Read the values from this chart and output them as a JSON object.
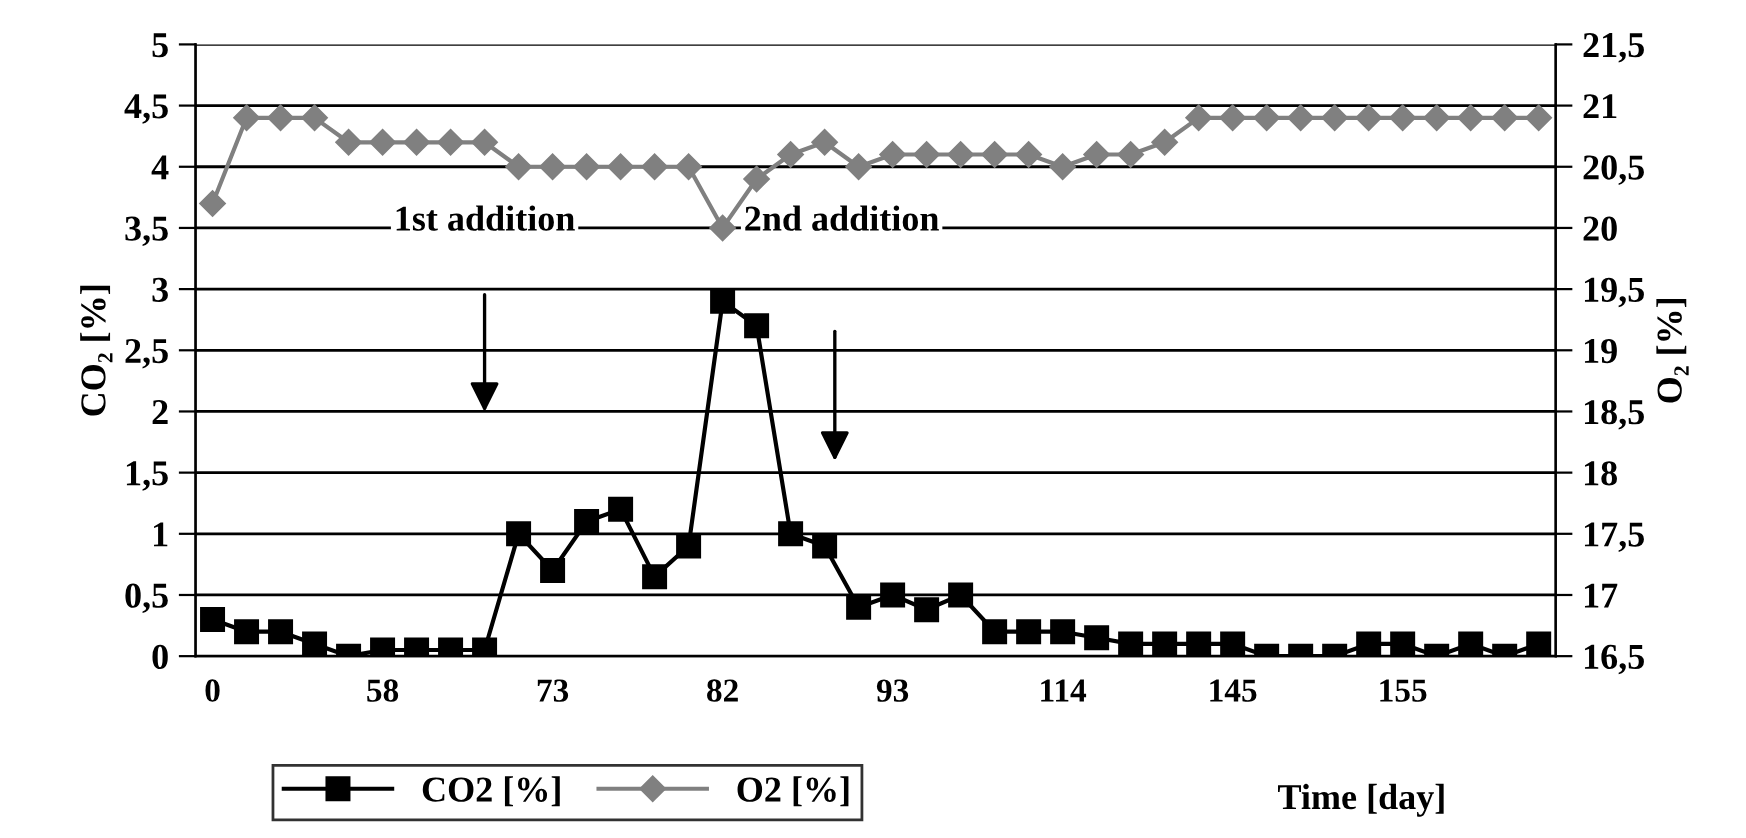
{
  "chart_data": {
    "type": "line",
    "xlabel": "Time [day]",
    "ylabel": "CO₂ [%]",
    "y2label": "O₂ [%]",
    "categories": [
      "0",
      null,
      null,
      null,
      null,
      "58",
      null,
      null,
      null,
      null,
      "73",
      null,
      null,
      null,
      null,
      "82",
      null,
      null,
      null,
      null,
      "93",
      null,
      null,
      null,
      null,
      "114",
      null,
      null,
      null,
      null,
      "145",
      null,
      null,
      null,
      null,
      "155",
      null,
      null,
      null,
      null
    ],
    "series": [
      {
        "name": "CO2 [%]",
        "color": "#000000",
        "marker": "square",
        "values": [
          0.3,
          0.2,
          0.2,
          0.1,
          0,
          0.05,
          0.05,
          0.05,
          0.05,
          1.0,
          0.7,
          1.1,
          1.2,
          0.65,
          0.9,
          2.9,
          2.7,
          1.0,
          0.9,
          0.4,
          0.5,
          0.38,
          0.5,
          0.2,
          0.2,
          0.2,
          0.15,
          0.1,
          0.1,
          0.1,
          0.1,
          0,
          0,
          0,
          0.1,
          0.1,
          0,
          0.1,
          0,
          0.1
        ]
      },
      {
        "name": "O2 [%]",
        "color": "#808080",
        "marker": "diamond",
        "axis": "y2",
        "values": [
          20.2,
          20.9,
          20.9,
          20.9,
          20.7,
          20.7,
          20.7,
          20.7,
          20.7,
          20.5,
          20.5,
          20.5,
          20.5,
          20.5,
          20.5,
          20.0,
          20.4,
          20.6,
          20.7,
          20.5,
          20.6,
          20.6,
          20.6,
          20.6,
          20.6,
          20.5,
          20.6,
          20.6,
          20.7,
          20.9,
          20.9,
          20.9,
          20.9,
          20.9,
          20.9,
          20.9,
          20.9,
          20.9,
          20.9,
          20.9
        ]
      }
    ],
    "ylim": [
      0,
      5
    ],
    "yticks": [
      0,
      {
        "value": 0.5,
        "label": "0,5"
      },
      1,
      {
        "value": 1.5,
        "label": "1,5"
      },
      2,
      {
        "value": 2.5,
        "label": "2,5"
      },
      3,
      {
        "value": 3.5,
        "label": "3,5"
      },
      4,
      {
        "value": 4.5,
        "label": "4,5"
      },
      5
    ],
    "y2lim": [
      16.5,
      21.5
    ],
    "y2ticks": [
      {
        "value": 16.5,
        "label": "16,5"
      },
      17,
      {
        "value": 17.5,
        "label": "17,5"
      },
      18,
      {
        "value": 18.5,
        "label": "18,5"
      },
      19,
      {
        "value": 19.5,
        "label": "19,5"
      },
      20,
      {
        "value": 20.5,
        "label": "20,5"
      },
      21,
      {
        "value": 21.5,
        "label": "21,5"
      }
    ],
    "annotations": [
      "1st addition",
      "2nd addition"
    ],
    "grid": "y",
    "legend": "bottom",
    "line_style": "solid"
  }
}
